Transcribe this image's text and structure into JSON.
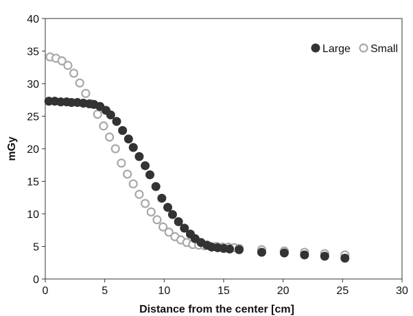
{
  "chart_data": {
    "type": "scatter",
    "title": "",
    "xlabel": "Distance from the center [cm]",
    "ylabel": "mGy",
    "xlim": [
      0,
      30
    ],
    "ylim": [
      0,
      40
    ],
    "x_ticks": [
      "0",
      "5",
      "10",
      "15",
      "20",
      "25",
      "30"
    ],
    "y_ticks": [
      "0",
      "5",
      "10",
      "15",
      "20",
      "25",
      "30",
      "35",
      "40"
    ],
    "grid": false,
    "legend_position": "top-right",
    "series": [
      {
        "name": "Large",
        "marker": "filled-circle",
        "color": "#333333",
        "points": [
          [
            0.3,
            27.3
          ],
          [
            0.8,
            27.3
          ],
          [
            1.3,
            27.2
          ],
          [
            1.8,
            27.2
          ],
          [
            2.2,
            27.1
          ],
          [
            2.7,
            27.1
          ],
          [
            3.2,
            27.0
          ],
          [
            3.7,
            26.9
          ],
          [
            4.1,
            26.8
          ],
          [
            4.6,
            26.5
          ],
          [
            5.1,
            25.9
          ],
          [
            5.5,
            25.2
          ],
          [
            6.0,
            24.2
          ],
          [
            6.5,
            22.8
          ],
          [
            7.0,
            21.5
          ],
          [
            7.4,
            20.2
          ],
          [
            7.9,
            18.8
          ],
          [
            8.4,
            17.4
          ],
          [
            8.8,
            16.0
          ],
          [
            9.3,
            14.2
          ],
          [
            9.8,
            12.4
          ],
          [
            10.3,
            11.0
          ],
          [
            10.7,
            9.9
          ],
          [
            11.2,
            8.8
          ],
          [
            11.7,
            7.8
          ],
          [
            12.2,
            6.9
          ],
          [
            12.6,
            6.2
          ],
          [
            13.1,
            5.6
          ],
          [
            13.6,
            5.2
          ],
          [
            14.0,
            4.9
          ],
          [
            14.5,
            4.8
          ],
          [
            15.0,
            4.7
          ],
          [
            15.5,
            4.6
          ],
          [
            16.3,
            4.5
          ],
          [
            18.2,
            4.1
          ],
          [
            20.1,
            4.0
          ],
          [
            21.8,
            3.7
          ],
          [
            23.5,
            3.5
          ],
          [
            25.2,
            3.2
          ]
        ]
      },
      {
        "name": "Small",
        "marker": "open-circle",
        "color": "#a8a8a8",
        "points": [
          [
            0.4,
            34.1
          ],
          [
            0.9,
            33.9
          ],
          [
            1.4,
            33.5
          ],
          [
            1.9,
            32.8
          ],
          [
            2.4,
            31.6
          ],
          [
            2.9,
            30.1
          ],
          [
            3.4,
            28.5
          ],
          [
            3.9,
            26.9
          ],
          [
            4.4,
            25.3
          ],
          [
            4.9,
            23.5
          ],
          [
            5.4,
            21.8
          ],
          [
            5.9,
            20.0
          ],
          [
            6.4,
            17.8
          ],
          [
            6.9,
            16.1
          ],
          [
            7.4,
            14.6
          ],
          [
            7.9,
            13.0
          ],
          [
            8.4,
            11.6
          ],
          [
            8.9,
            10.3
          ],
          [
            9.4,
            9.1
          ],
          [
            9.9,
            8.0
          ],
          [
            10.4,
            7.2
          ],
          [
            10.9,
            6.5
          ],
          [
            11.4,
            6.0
          ],
          [
            11.9,
            5.6
          ],
          [
            12.4,
            5.3
          ],
          [
            12.9,
            5.2
          ],
          [
            13.4,
            5.1
          ],
          [
            13.9,
            5.0
          ],
          [
            14.4,
            5.0
          ],
          [
            14.9,
            4.9
          ],
          [
            15.4,
            4.9
          ],
          [
            15.9,
            4.8
          ],
          [
            16.3,
            4.7
          ],
          [
            18.2,
            4.5
          ],
          [
            20.1,
            4.3
          ],
          [
            21.8,
            4.1
          ],
          [
            23.5,
            3.9
          ],
          [
            25.2,
            3.7
          ]
        ]
      }
    ]
  }
}
